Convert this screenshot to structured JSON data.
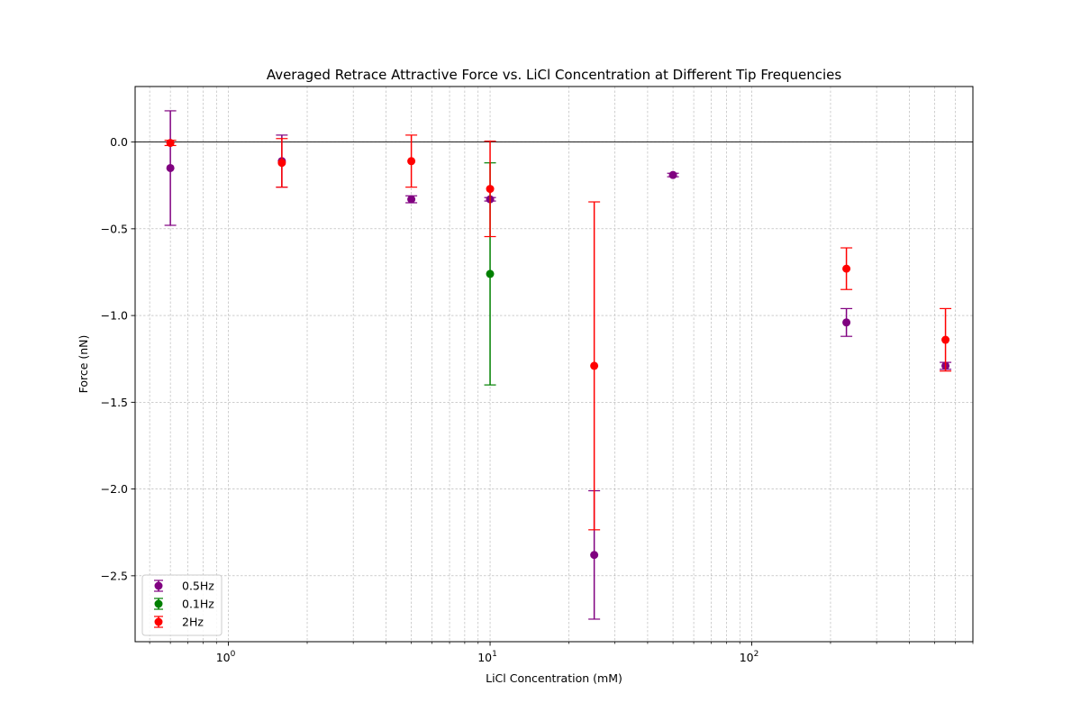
{
  "chart_data": {
    "type": "scatter",
    "title": "Averaged Retrace Attractive Force vs. LiCl Concentration at Different Tip Frequencies",
    "xlabel": "LiCl Concentration (mM)",
    "ylabel": "Force (nN)",
    "xscale": "log",
    "xlim": [
      0.44,
      700
    ],
    "ylim": [
      -2.88,
      0.32
    ],
    "x_major_ticks": [
      {
        "value": 1,
        "base": "10",
        "exp": "0"
      },
      {
        "value": 10,
        "base": "10",
        "exp": "1"
      },
      {
        "value": 100,
        "base": "10",
        "exp": "2"
      }
    ],
    "y_ticks": [
      {
        "value": 0.0,
        "label": "0.0"
      },
      {
        "value": -0.5,
        "label": "−0.5"
      },
      {
        "value": -1.0,
        "label": "−1.0"
      },
      {
        "value": -1.5,
        "label": "−1.5"
      },
      {
        "value": -2.0,
        "label": "−2.0"
      },
      {
        "value": -2.5,
        "label": "−2.5"
      }
    ],
    "grid": true,
    "zero_line": true,
    "legend": "lower-left",
    "series": [
      {
        "name": "0.5Hz",
        "color": "#800080",
        "points": [
          {
            "x": 0.6,
            "y": -0.15,
            "err": 0.33
          },
          {
            "x": 1.6,
            "y": -0.11,
            "err": 0.15
          },
          {
            "x": 5,
            "y": -0.33,
            "err": 0.02
          },
          {
            "x": 10,
            "y": -0.33,
            "err": 0.01
          },
          {
            "x": 25,
            "y": -2.38,
            "err": 0.37
          },
          {
            "x": 50,
            "y": -0.19,
            "err": 0.01
          },
          {
            "x": 230,
            "y": -1.04,
            "err": 0.08
          },
          {
            "x": 550,
            "y": -1.29,
            "err": 0.02
          }
        ]
      },
      {
        "name": "0.1Hz",
        "color": "#008000",
        "points": [
          {
            "x": 10,
            "y": -0.76,
            "err": 0.64
          }
        ]
      },
      {
        "name": "2Hz",
        "color": "#ff0000",
        "points": [
          {
            "x": 0.6,
            "y": -0.005,
            "err": 0.015
          },
          {
            "x": 1.6,
            "y": -0.12,
            "err": 0.14
          },
          {
            "x": 5,
            "y": -0.11,
            "err": 0.15
          },
          {
            "x": 10,
            "y": -0.27,
            "err": 0.275
          },
          {
            "x": 25,
            "y": -1.29,
            "err": 0.945
          },
          {
            "x": 230,
            "y": -0.73,
            "err": 0.12
          },
          {
            "x": 550,
            "y": -1.14,
            "err": 0.18
          }
        ]
      }
    ]
  }
}
